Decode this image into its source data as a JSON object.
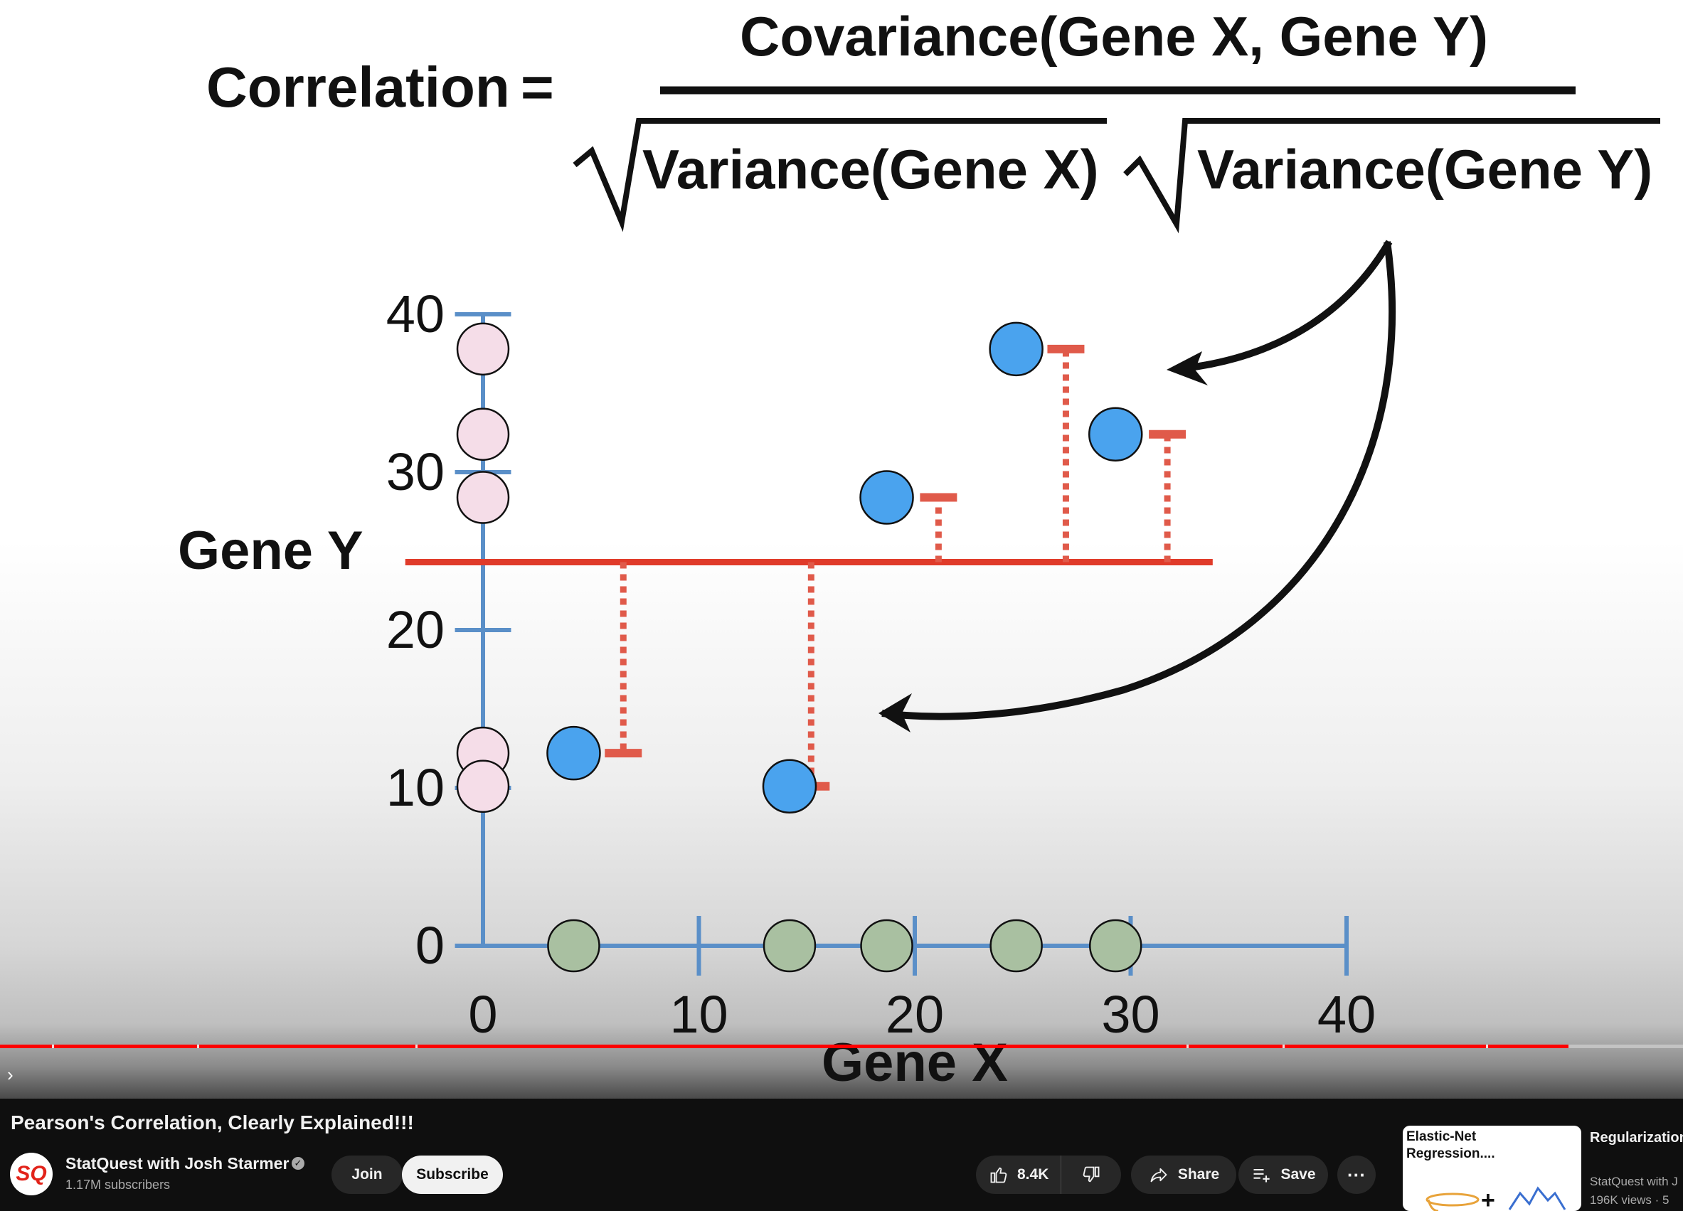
{
  "equation": {
    "lhs": "Correlation",
    "equals": "=",
    "numerator": "Covariance(Gene X, Gene Y)",
    "denominator_left": "Variance(Gene X)",
    "denominator_right": "Variance(Gene Y)"
  },
  "colors": {
    "axis": "#5a8fc8",
    "mean_line": "#e03b2a",
    "residual": "#e05a4a",
    "data_point": "#4aa3ee",
    "y_projection": "#f5dde8",
    "x_projection": "#a9c0a1",
    "progress": "#ff0000"
  },
  "chart_data": {
    "type": "scatter",
    "xlabel": "Gene X",
    "ylabel": "Gene Y",
    "xlim": [
      0,
      40
    ],
    "ylim": [
      0,
      40
    ],
    "x_ticks": [
      "0",
      "10",
      "20",
      "30",
      "40"
    ],
    "y_ticks": [
      "0",
      "10",
      "20",
      "30",
      "40"
    ],
    "points": [
      {
        "x": 4.2,
        "y": 12.2
      },
      {
        "x": 14.2,
        "y": 10.1
      },
      {
        "x": 18.7,
        "y": 28.4
      },
      {
        "x": 24.7,
        "y": 37.8
      },
      {
        "x": 29.3,
        "y": 32.4
      }
    ],
    "mean_y": 24.3,
    "mean_line_x_range": [
      -3.6,
      33.8
    ],
    "residual_offsets_x": [
      2.3,
      1.0,
      2.4,
      2.3,
      2.4
    ],
    "annotation": "curved arrows from the Variance(Gene Y) term pointing to the residual lines"
  },
  "player": {
    "progress": 0.932,
    "chapter_gaps": [
      0.031,
      0.117,
      0.247,
      0.705,
      0.762,
      0.883
    ]
  },
  "below": {
    "title": "Pearson's Correlation, Clearly Explained!!!",
    "channel_name": "StatQuest with Josh Starmer",
    "avatar_text": "SQ",
    "subscribers": "1.17M subscribers",
    "join_label": "Join",
    "subscribe_label": "Subscribe",
    "likes": "8.4K",
    "share_label": "Share",
    "save_label": "Save",
    "more_label": "···",
    "icons": [
      "like-icon",
      "dislike-icon",
      "share-icon",
      "save-icon",
      "more-icon",
      "verified-icon",
      "chevron-right-icon"
    ]
  },
  "recommendation": {
    "thumb_text": "Elastic-Net Regression....",
    "thumb_plus": "+",
    "title": "Regularization Net Regressio",
    "channel": "StatQuest with J",
    "meta": "196K views · 5"
  }
}
